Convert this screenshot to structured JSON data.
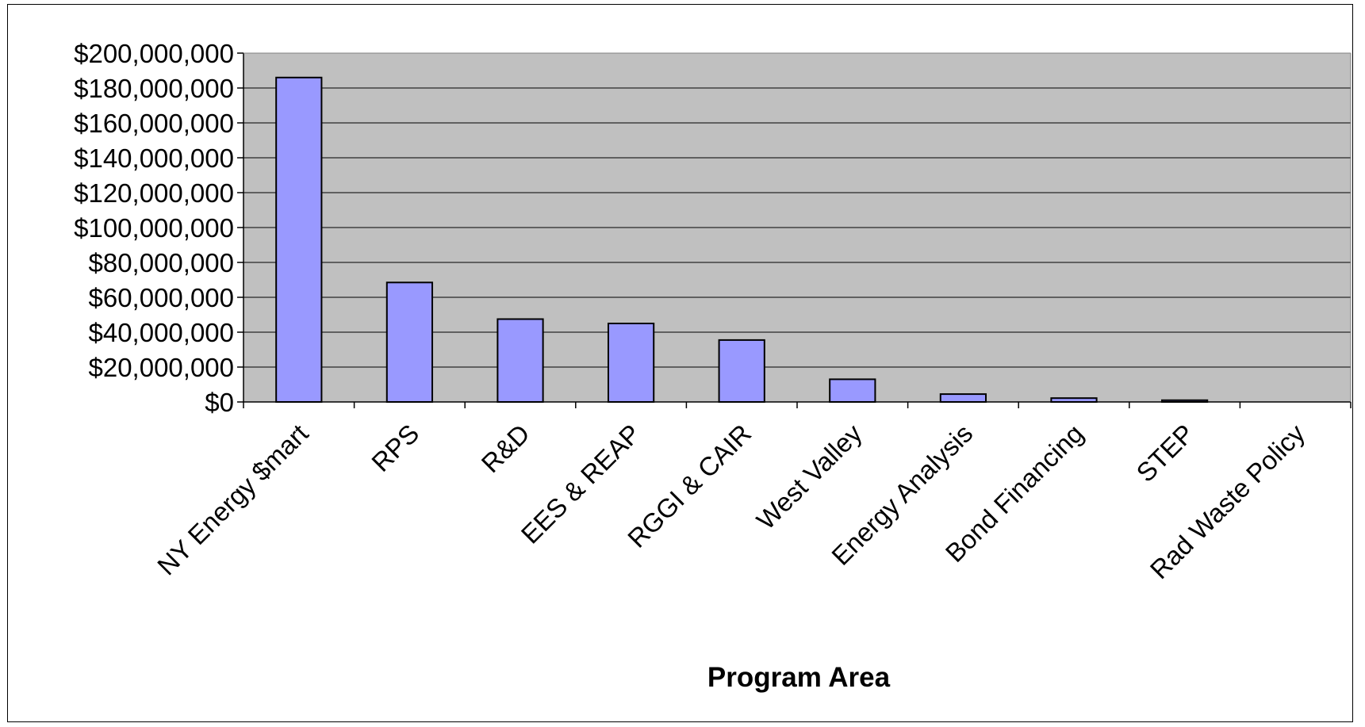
{
  "chart_data": {
    "type": "bar",
    "title": "",
    "xlabel": "Program Area",
    "ylabel": "",
    "categories": [
      "NY Energy $mart",
      "RPS",
      "R&D",
      "EES & REAP",
      "RGGI & CAIR",
      "West Valley",
      "Energy Analysis",
      "Bond Financing",
      "STEP",
      "Rad Waste Policy"
    ],
    "values": [
      186000000,
      68500000,
      47500000,
      45000000,
      35500000,
      13000000,
      4500000,
      2200000,
      1000000,
      0
    ],
    "ylim": [
      0,
      200000000
    ],
    "yticks": [
      0,
      20000000,
      40000000,
      60000000,
      80000000,
      100000000,
      120000000,
      140000000,
      160000000,
      180000000,
      200000000
    ],
    "ytick_labels": [
      "$0",
      "$20,000,000",
      "$40,000,000",
      "$60,000,000",
      "$80,000,000",
      "$100,000,000",
      "$120,000,000",
      "$140,000,000",
      "$160,000,000",
      "$180,000,000",
      "$200,000,000"
    ],
    "grid": true,
    "legend": "none",
    "colors": {
      "plot_background": "#c0c0c0",
      "bar_fill": "#9999ff",
      "bar_stroke": "#000000",
      "gridline": "#000000"
    }
  }
}
